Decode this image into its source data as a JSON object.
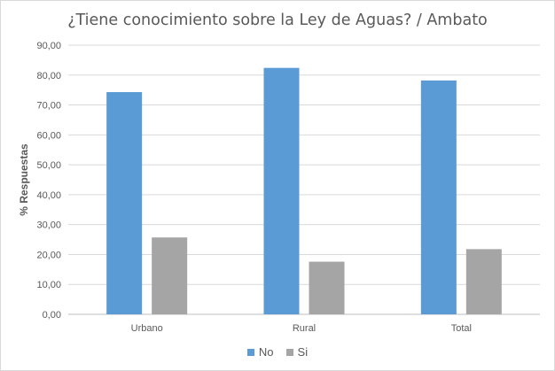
{
  "chart_data": {
    "type": "bar",
    "title": "¿Tiene conocimiento sobre la Ley de Aguas? / Ambato",
    "xlabel": "",
    "ylabel": "% Respuestas",
    "categories": [
      "Urbano",
      "Rural",
      "Total"
    ],
    "series": [
      {
        "name": "No",
        "color": "#5b9bd5",
        "values": [
          74.3,
          82.4,
          78.2
        ]
      },
      {
        "name": "Si",
        "color": "#a5a5a5",
        "values": [
          25.7,
          17.6,
          21.8
        ]
      }
    ],
    "ylim": [
      0,
      90
    ],
    "yticks": [
      "0,00",
      "10,00",
      "20,00",
      "30,00",
      "40,00",
      "50,00",
      "60,00",
      "70,00",
      "80,00",
      "90,00"
    ],
    "grid": true,
    "legend_position": "bottom"
  }
}
